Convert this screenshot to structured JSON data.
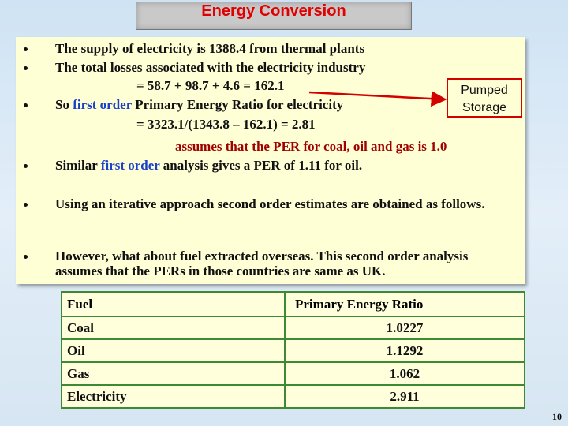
{
  "title": "Energy Conversion",
  "callout": [
    "Pumped",
    "Storage"
  ],
  "body": [
    [
      "The supply of electricity is  1388.4  from thermal plants"
    ],
    [
      "The total losses associated with the electricity industry"
    ],
    [
      "= 58.7 + 98.7 + 4.6 = 162.1"
    ],
    [
      "So ",
      "first order",
      " Primary Energy Ratio for electricity"
    ],
    [
      "=   3323.1/(1343.8 – 162.1) = 2.81"
    ],
    [
      "assumes that the PER for coal, oil and gas is 1.0"
    ],
    [
      "Similar ",
      "first order",
      " analysis gives a PER of 1.11 for oil."
    ],
    [
      "Using an iterative approach  second order estimates are obtained as follows."
    ],
    [
      "However,  what about fuel extracted overseas.  This second order analysis assumes that the PERs in those countries are same as UK."
    ]
  ],
  "table": {
    "header": [
      "Fuel",
      "Primary Energy Ratio"
    ],
    "rows": [
      [
        "Coal",
        "1.0227"
      ],
      [
        "Oil",
        "1.1292"
      ],
      [
        "Gas",
        "1.062"
      ],
      [
        "Electricity",
        "2.911"
      ]
    ]
  },
  "page_number": "10"
}
